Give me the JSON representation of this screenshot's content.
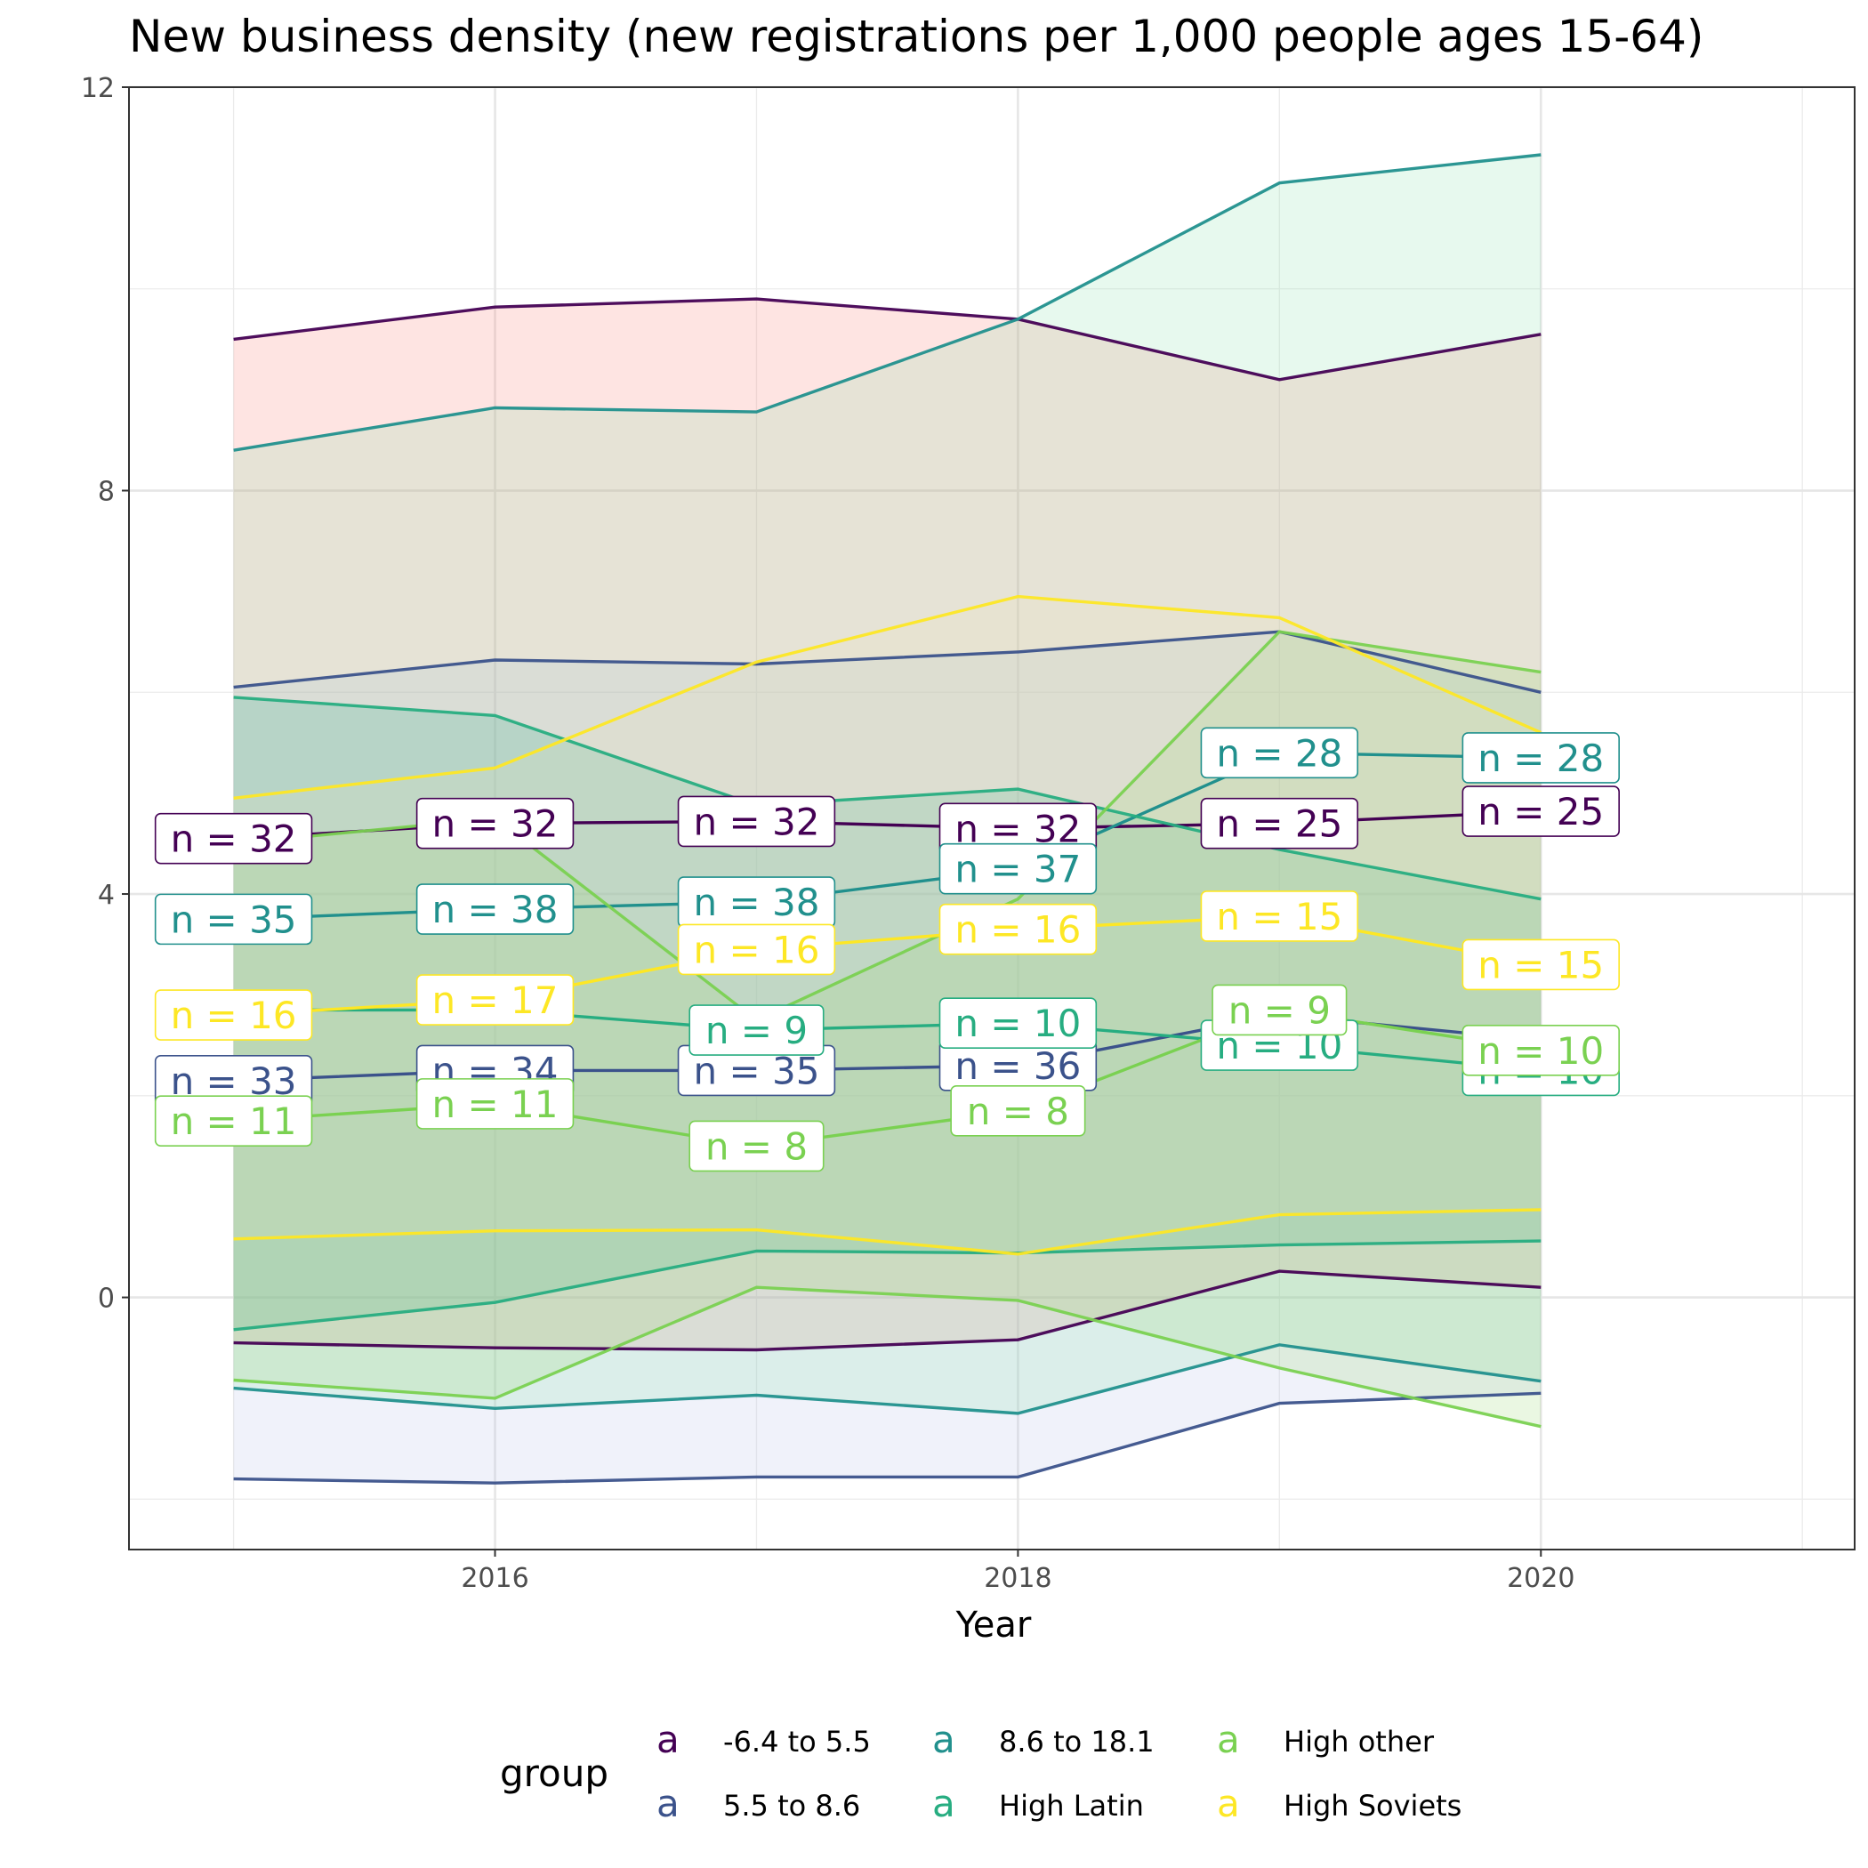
{
  "chart_data": {
    "type": "line",
    "title": "New business density (new registrations per 1,000 people ages 15-64)",
    "xlabel": "Year",
    "ylabel": "",
    "xlim": [
      2014.6,
      2021.2
    ],
    "ylim": [
      -2.5,
      12
    ],
    "x_ticks": [
      2016,
      2018,
      2020
    ],
    "y_ticks": [
      0,
      4,
      8,
      12
    ],
    "grid": true,
    "legend": {
      "title": "group",
      "position": "bottom",
      "key_glyph": "a"
    },
    "x": [
      2015,
      2016,
      2017,
      2018,
      2019,
      2020
    ],
    "series": [
      {
        "name": "-6.4 to 5.5",
        "color": "#440154",
        "fill": "#f8766d",
        "mean": [
          4.55,
          4.7,
          4.72,
          4.65,
          4.7,
          4.82
        ],
        "upper": [
          9.5,
          9.82,
          9.9,
          9.7,
          9.1,
          9.55
        ],
        "lower": [
          -0.45,
          -0.5,
          -0.52,
          -0.42,
          0.26,
          0.1
        ],
        "n": [
          32,
          32,
          32,
          32,
          25,
          25
        ]
      },
      {
        "name": "5.5 to 8.6",
        "color": "#3b528b",
        "fill": "#b4bde8",
        "mean": [
          2.15,
          2.25,
          2.25,
          2.3,
          2.8,
          2.55
        ],
        "upper": [
          6.05,
          6.32,
          6.28,
          6.4,
          6.6,
          6.0
        ],
        "lower": [
          -1.8,
          -1.84,
          -1.78,
          -1.78,
          -1.05,
          -0.95
        ],
        "n": [
          33,
          34,
          35,
          36,
          null,
          null
        ]
      },
      {
        "name": "8.6 to 18.1",
        "color": "#21908d",
        "fill": "#88e0aa",
        "mean": [
          3.75,
          3.85,
          3.92,
          4.25,
          5.4,
          5.35
        ],
        "upper": [
          8.4,
          8.82,
          8.78,
          9.7,
          11.05,
          11.33
        ],
        "lower": [
          -0.9,
          -1.1,
          -0.97,
          -1.15,
          -0.47,
          -0.83
        ],
        "n": [
          35,
          38,
          38,
          37,
          28,
          28
        ]
      },
      {
        "name": "High Latin",
        "color": "#27ad81",
        "fill": "#2fb38a",
        "mean": [
          2.85,
          2.85,
          2.65,
          2.72,
          2.5,
          2.25
        ],
        "upper": [
          5.95,
          5.77,
          4.88,
          5.04,
          4.44,
          3.95
        ],
        "lower": [
          -0.32,
          -0.05,
          0.46,
          0.44,
          0.52,
          0.56
        ],
        "n": [
          null,
          null,
          9,
          10,
          10,
          10
        ]
      },
      {
        "name": "High other",
        "color": "#7ad151",
        "fill": "#98d870",
        "mean": [
          1.75,
          1.92,
          1.5,
          1.85,
          2.85,
          2.45
        ],
        "upper": [
          4.5,
          4.75,
          2.75,
          3.95,
          6.6,
          6.2
        ],
        "lower": [
          -0.82,
          -1.0,
          0.1,
          -0.03,
          -0.7,
          -1.28
        ],
        "n": [
          11,
          11,
          8,
          8,
          9,
          10
        ]
      },
      {
        "name": "High Soviets",
        "color": "#fde725",
        "fill": "#ede6c0",
        "mean": [
          2.8,
          2.95,
          3.45,
          3.65,
          3.78,
          3.3
        ],
        "upper": [
          4.95,
          5.25,
          6.3,
          6.95,
          6.74,
          5.6
        ],
        "lower": [
          0.58,
          0.66,
          0.67,
          0.43,
          0.82,
          0.87
        ],
        "n": [
          16,
          17,
          16,
          16,
          15,
          15
        ]
      }
    ]
  }
}
